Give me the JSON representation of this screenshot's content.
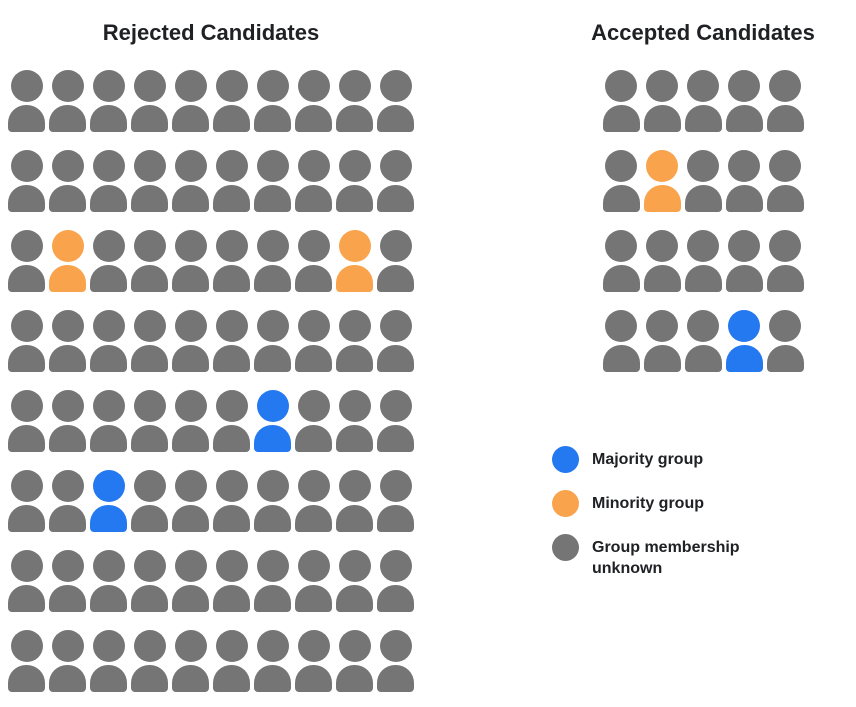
{
  "colors": {
    "majority": "#2478F0",
    "minority": "#F9A34D",
    "unknown": "#757575"
  },
  "legend": [
    {
      "group": "majority",
      "label": "Majority group"
    },
    {
      "group": "minority",
      "label": "Minority group"
    },
    {
      "group": "unknown",
      "label": "Group membership unknown"
    }
  ],
  "chart_data": {
    "type": "pictogram",
    "code_map": {
      "G": "unknown",
      "O": "minority",
      "B": "majority"
    },
    "charts": [
      {
        "title": "Rejected Candidates",
        "rows": 8,
        "cols": 10,
        "total": 80,
        "counts": {
          "majority": 2,
          "minority": 2,
          "unknown": 76
        },
        "rows_pattern": [
          "GGGGGGGGGG",
          "GGGGGGGGGG",
          "GOGGGGGGOG",
          "GGGGGGGGGG",
          "GGGGGGBGGG",
          "GGBGGGGGGG",
          "GGGGGGGGGG",
          "GGGGGGGGGG"
        ]
      },
      {
        "title": "Accepted Candidates",
        "rows": 4,
        "cols": 5,
        "total": 20,
        "counts": {
          "majority": 1,
          "minority": 1,
          "unknown": 18
        },
        "rows_pattern": [
          "GGGGG",
          "GOGGG",
          "GGGGG",
          "GGGBG"
        ]
      }
    ]
  }
}
